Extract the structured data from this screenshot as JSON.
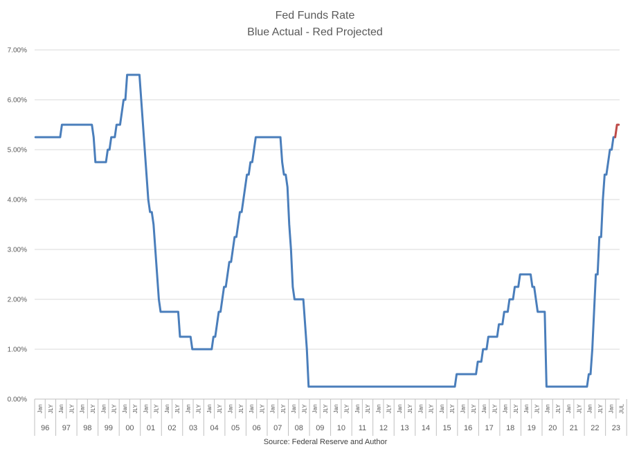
{
  "chart_data": {
    "type": "line",
    "title": "Fed Funds Rate",
    "subtitle": "Blue Actual - Red Projected",
    "source": "Source: Federal Reserve and Author",
    "ylim": [
      0,
      7
    ],
    "y_ticks": [
      "0.00%",
      "1.00%",
      "2.00%",
      "3.00%",
      "4.00%",
      "5.00%",
      "6.00%",
      "7.00%"
    ],
    "grid": true,
    "x_range": [
      "1996-01",
      "2023-07"
    ],
    "month_labels": [
      "Jan",
      "JLY"
    ],
    "last_month_label": "JUL",
    "years": [
      "96",
      "97",
      "98",
      "99",
      "00",
      "01",
      "02",
      "03",
      "04",
      "05",
      "06",
      "07",
      "08",
      "09",
      "10",
      "11",
      "12",
      "13",
      "14",
      "15",
      "16",
      "17",
      "18",
      "19",
      "20",
      "21",
      "22",
      "23"
    ],
    "colors": {
      "actual": "#4a7ebb",
      "projected": "#be4b48",
      "grid": "#d9d9d9",
      "text": "#595959"
    },
    "series": [
      {
        "role": "actual",
        "color": "#4a7ebb",
        "points": [
          [
            "1996-01",
            5.25
          ],
          [
            "1997-03",
            5.25
          ],
          [
            "1997-04",
            5.5
          ],
          [
            "1998-09",
            5.5
          ],
          [
            "1998-10",
            5.25
          ],
          [
            "1998-11",
            4.75
          ],
          [
            "1999-05",
            4.75
          ],
          [
            "1999-06",
            5.0
          ],
          [
            "1999-07",
            5.0
          ],
          [
            "1999-08",
            5.25
          ],
          [
            "1999-10",
            5.25
          ],
          [
            "1999-11",
            5.5
          ],
          [
            "2000-01",
            5.5
          ],
          [
            "2000-02",
            5.75
          ],
          [
            "2000-03",
            6.0
          ],
          [
            "2000-04",
            6.0
          ],
          [
            "2000-05",
            6.5
          ],
          [
            "2000-12",
            6.5
          ],
          [
            "2001-01",
            6.0
          ],
          [
            "2001-02",
            5.5
          ],
          [
            "2001-03",
            5.0
          ],
          [
            "2001-04",
            4.5
          ],
          [
            "2001-05",
            4.0
          ],
          [
            "2001-06",
            3.75
          ],
          [
            "2001-07",
            3.75
          ],
          [
            "2001-08",
            3.5
          ],
          [
            "2001-09",
            3.0
          ],
          [
            "2001-10",
            2.5
          ],
          [
            "2001-11",
            2.0
          ],
          [
            "2001-12",
            1.75
          ],
          [
            "2002-10",
            1.75
          ],
          [
            "2002-11",
            1.25
          ],
          [
            "2003-05",
            1.25
          ],
          [
            "2003-06",
            1.0
          ],
          [
            "2004-05",
            1.0
          ],
          [
            "2004-06",
            1.25
          ],
          [
            "2004-07",
            1.25
          ],
          [
            "2004-08",
            1.5
          ],
          [
            "2004-09",
            1.75
          ],
          [
            "2004-10",
            1.75
          ],
          [
            "2004-11",
            2.0
          ],
          [
            "2004-12",
            2.25
          ],
          [
            "2005-01",
            2.25
          ],
          [
            "2005-02",
            2.5
          ],
          [
            "2005-03",
            2.75
          ],
          [
            "2005-04",
            2.75
          ],
          [
            "2005-05",
            3.0
          ],
          [
            "2005-06",
            3.25
          ],
          [
            "2005-07",
            3.25
          ],
          [
            "2005-08",
            3.5
          ],
          [
            "2005-09",
            3.75
          ],
          [
            "2005-10",
            3.75
          ],
          [
            "2005-11",
            4.0
          ],
          [
            "2005-12",
            4.25
          ],
          [
            "2006-01",
            4.5
          ],
          [
            "2006-02",
            4.5
          ],
          [
            "2006-03",
            4.75
          ],
          [
            "2006-04",
            4.75
          ],
          [
            "2006-05",
            5.0
          ],
          [
            "2006-06",
            5.25
          ],
          [
            "2007-08",
            5.25
          ],
          [
            "2007-09",
            4.75
          ],
          [
            "2007-10",
            4.5
          ],
          [
            "2007-11",
            4.5
          ],
          [
            "2007-12",
            4.25
          ],
          [
            "2008-01",
            3.5
          ],
          [
            "2008-02",
            3.0
          ],
          [
            "2008-03",
            2.25
          ],
          [
            "2008-04",
            2.0
          ],
          [
            "2008-09",
            2.0
          ],
          [
            "2008-10",
            1.5
          ],
          [
            "2008-11",
            1.0
          ],
          [
            "2008-12",
            0.25
          ],
          [
            "2015-11",
            0.25
          ],
          [
            "2015-12",
            0.5
          ],
          [
            "2016-11",
            0.5
          ],
          [
            "2016-12",
            0.75
          ],
          [
            "2017-02",
            0.75
          ],
          [
            "2017-03",
            1.0
          ],
          [
            "2017-05",
            1.0
          ],
          [
            "2017-06",
            1.25
          ],
          [
            "2017-11",
            1.25
          ],
          [
            "2017-12",
            1.5
          ],
          [
            "2018-02",
            1.5
          ],
          [
            "2018-03",
            1.75
          ],
          [
            "2018-05",
            1.75
          ],
          [
            "2018-06",
            2.0
          ],
          [
            "2018-08",
            2.0
          ],
          [
            "2018-09",
            2.25
          ],
          [
            "2018-11",
            2.25
          ],
          [
            "2018-12",
            2.5
          ],
          [
            "2019-06",
            2.5
          ],
          [
            "2019-07",
            2.25
          ],
          [
            "2019-08",
            2.25
          ],
          [
            "2019-09",
            2.0
          ],
          [
            "2019-10",
            1.75
          ],
          [
            "2020-02",
            1.75
          ],
          [
            "2020-03",
            0.25
          ],
          [
            "2022-02",
            0.25
          ],
          [
            "2022-03",
            0.5
          ],
          [
            "2022-04",
            0.5
          ],
          [
            "2022-05",
            1.0
          ],
          [
            "2022-06",
            1.75
          ],
          [
            "2022-07",
            2.5
          ],
          [
            "2022-08",
            2.5
          ],
          [
            "2022-09",
            3.25
          ],
          [
            "2022-10",
            3.25
          ],
          [
            "2022-11",
            4.0
          ],
          [
            "2022-12",
            4.5
          ],
          [
            "2023-01",
            4.5
          ],
          [
            "2023-02",
            4.75
          ],
          [
            "2023-03",
            5.0
          ],
          [
            "2023-04",
            5.0
          ],
          [
            "2023-05",
            5.25
          ],
          [
            "2023-06",
            5.25
          ]
        ]
      },
      {
        "role": "projected",
        "color": "#be4b48",
        "points": [
          [
            "2023-06",
            5.25
          ],
          [
            "2023-07",
            5.5
          ],
          [
            "2023-08",
            5.5
          ]
        ]
      }
    ]
  }
}
